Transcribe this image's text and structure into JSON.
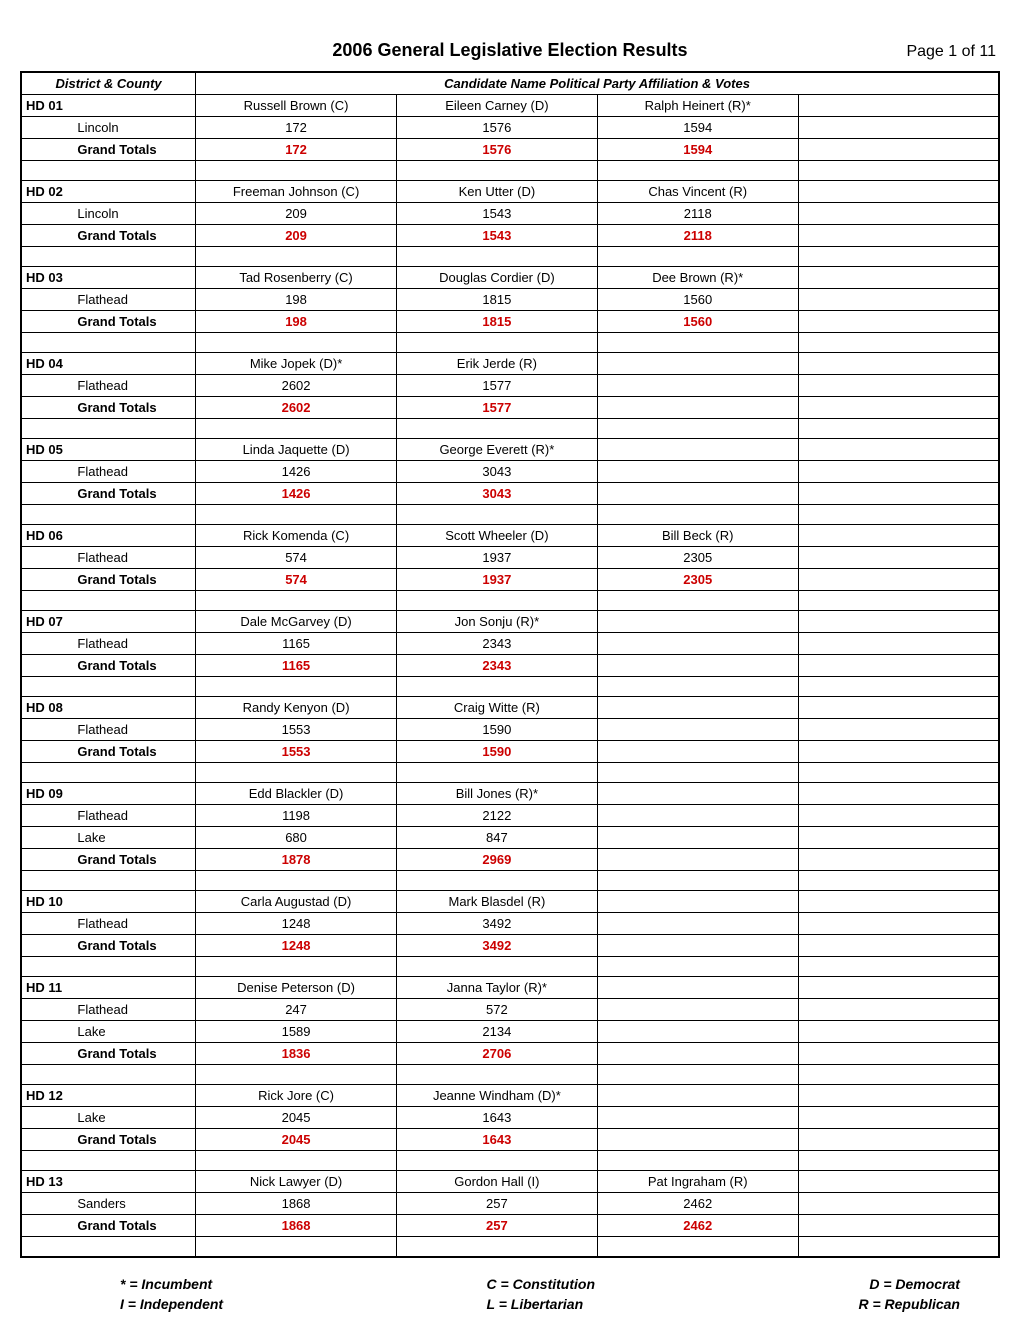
{
  "title": "2006 General Legislative Election Results",
  "page": "Page 1 of 11",
  "header": {
    "district_county": "District & County",
    "candidates": "Candidate Name Political Party Affiliation & Votes"
  },
  "grand_totals_label": "Grand Totals",
  "legend": {
    "incumbent": "* = Incumbent",
    "independent": "I = Independent",
    "constitution": "C = Constitution",
    "libertarian": "L = Libertarian",
    "democrat": "D = Democrat",
    "republican": "R = Republican"
  },
  "colors": {
    "grand_total": "#cc0000",
    "border": "#000000",
    "bg": "#ffffff"
  },
  "districts": [
    {
      "id": "HD 01",
      "candidates": [
        "Russell Brown (C)",
        "Eileen Carney (D)",
        "Ralph Heinert (R)*"
      ],
      "rows": [
        {
          "county": "Lincoln",
          "votes": [
            "172",
            "1576",
            "1594"
          ]
        }
      ],
      "totals": [
        "172",
        "1576",
        "1594"
      ]
    },
    {
      "id": "HD 02",
      "candidates": [
        "Freeman Johnson (C)",
        "Ken Utter (D)",
        "Chas Vincent (R)"
      ],
      "rows": [
        {
          "county": "Lincoln",
          "votes": [
            "209",
            "1543",
            "2118"
          ]
        }
      ],
      "totals": [
        "209",
        "1543",
        "2118"
      ]
    },
    {
      "id": "HD 03",
      "candidates": [
        "Tad Rosenberry (C)",
        "Douglas Cordier (D)",
        "Dee Brown (R)*"
      ],
      "rows": [
        {
          "county": "Flathead",
          "votes": [
            "198",
            "1815",
            "1560"
          ]
        }
      ],
      "totals": [
        "198",
        "1815",
        "1560"
      ]
    },
    {
      "id": "HD 04",
      "candidates": [
        "Mike Jopek (D)*",
        "Erik Jerde (R)",
        ""
      ],
      "rows": [
        {
          "county": "Flathead",
          "votes": [
            "2602",
            "1577",
            ""
          ]
        }
      ],
      "totals": [
        "2602",
        "1577",
        ""
      ]
    },
    {
      "id": "HD 05",
      "candidates": [
        "Linda Jaquette (D)",
        "George Everett (R)*",
        ""
      ],
      "rows": [
        {
          "county": "Flathead",
          "votes": [
            "1426",
            "3043",
            ""
          ]
        }
      ],
      "totals": [
        "1426",
        "3043",
        ""
      ]
    },
    {
      "id": "HD 06",
      "candidates": [
        "Rick Komenda (C)",
        "Scott Wheeler (D)",
        "Bill Beck (R)"
      ],
      "rows": [
        {
          "county": "Flathead",
          "votes": [
            "574",
            "1937",
            "2305"
          ]
        }
      ],
      "totals": [
        "574",
        "1937",
        "2305"
      ]
    },
    {
      "id": "HD 07",
      "candidates": [
        "Dale McGarvey (D)",
        "Jon Sonju (R)*",
        ""
      ],
      "rows": [
        {
          "county": "Flathead",
          "votes": [
            "1165",
            "2343",
            ""
          ]
        }
      ],
      "totals": [
        "1165",
        "2343",
        ""
      ]
    },
    {
      "id": "HD 08",
      "candidates": [
        "Randy Kenyon (D)",
        "Craig Witte (R)",
        ""
      ],
      "rows": [
        {
          "county": "Flathead",
          "votes": [
            "1553",
            "1590",
            ""
          ]
        }
      ],
      "totals": [
        "1553",
        "1590",
        ""
      ]
    },
    {
      "id": "HD 09",
      "candidates": [
        "Edd Blackler (D)",
        "Bill Jones (R)*",
        ""
      ],
      "rows": [
        {
          "county": "Flathead",
          "votes": [
            "1198",
            "2122",
            ""
          ]
        },
        {
          "county": "Lake",
          "votes": [
            "680",
            "847",
            ""
          ]
        }
      ],
      "totals": [
        "1878",
        "2969",
        ""
      ]
    },
    {
      "id": "HD  10",
      "candidates": [
        "Carla Augustad (D)",
        "Mark Blasdel (R)",
        ""
      ],
      "rows": [
        {
          "county": "Flathead",
          "votes": [
            "1248",
            "3492",
            ""
          ]
        }
      ],
      "totals": [
        "1248",
        "3492",
        ""
      ]
    },
    {
      "id": "HD  11",
      "candidates": [
        "Denise Peterson (D)",
        "Janna Taylor (R)*",
        ""
      ],
      "rows": [
        {
          "county": "Flathead",
          "votes": [
            "247",
            "572",
            ""
          ]
        },
        {
          "county": "Lake",
          "votes": [
            "1589",
            "2134",
            ""
          ]
        }
      ],
      "totals": [
        "1836",
        "2706",
        ""
      ]
    },
    {
      "id": "HD  12",
      "candidates": [
        "Rick Jore (C)",
        "Jeanne Windham (D)*",
        ""
      ],
      "rows": [
        {
          "county": "Lake",
          "votes": [
            "2045",
            "1643",
            ""
          ]
        }
      ],
      "totals": [
        "2045",
        "1643",
        ""
      ]
    },
    {
      "id": "HD  13",
      "candidates": [
        "Nick Lawyer (D)",
        "Gordon Hall (I)",
        "Pat Ingraham (R)"
      ],
      "rows": [
        {
          "county": "Sanders",
          "votes": [
            "1868",
            "257",
            "2462"
          ]
        }
      ],
      "totals": [
        "1868",
        "257",
        "2462"
      ]
    }
  ]
}
